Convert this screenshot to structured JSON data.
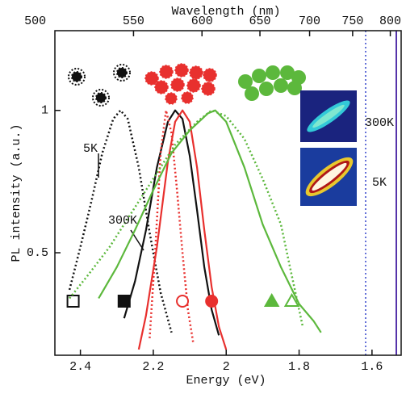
{
  "chart_data": {
    "type": "line",
    "xlabel": "Energy (eV)",
    "ylabel": "PL intensity (a.u.)",
    "x2label": "Wavelength (nm)",
    "xlim": [
      2.47,
      1.52
    ],
    "xticks": [
      2.4,
      2.2,
      2,
      1.8,
      1.6
    ],
    "ylim": [
      0.14,
      1.28
    ],
    "yticks": [
      0.5,
      1
    ],
    "x2ticks": [
      500,
      550,
      600,
      650,
      700,
      750,
      800
    ],
    "series": [
      {
        "color": "#111111",
        "dash": true,
        "x": [
          2.43,
          2.4,
          2.37,
          2.34,
          2.31,
          2.29,
          2.27,
          2.24,
          2.21,
          2.18,
          2.15
        ],
        "values": [
          0.37,
          0.52,
          0.68,
          0.85,
          0.97,
          1.0,
          0.97,
          0.8,
          0.57,
          0.36,
          0.22
        ],
        "marker": {
          "shape": "square-open",
          "x": 2.42,
          "y": 0.33
        }
      },
      {
        "color": "#111111",
        "dash": false,
        "x": [
          2.28,
          2.25,
          2.22,
          2.19,
          2.16,
          2.14,
          2.12,
          2.1,
          2.08,
          2.06,
          2.04,
          2.02
        ],
        "values": [
          0.27,
          0.4,
          0.58,
          0.8,
          0.96,
          1.0,
          0.97,
          0.84,
          0.65,
          0.45,
          0.3,
          0.21
        ],
        "marker": {
          "shape": "square",
          "x": 2.28,
          "y": 0.33
        }
      },
      {
        "color": "#e8302e",
        "dash": true,
        "x": [
          2.21,
          2.195,
          2.18,
          2.165,
          2.15,
          2.135,
          2.12,
          2.105,
          2.09
        ],
        "values": [
          0.2,
          0.5,
          0.85,
          1.0,
          0.92,
          0.72,
          0.5,
          0.3,
          0.18
        ],
        "marker": {
          "shape": "circle-open",
          "x": 2.12,
          "y": 0.33
        }
      },
      {
        "color": "#e8302e",
        "dash": false,
        "x": [
          2.24,
          2.22,
          2.19,
          2.16,
          2.14,
          2.12,
          2.1,
          2.08,
          2.06,
          2.04,
          2.02,
          2.0
        ],
        "values": [
          0.16,
          0.28,
          0.52,
          0.82,
          0.96,
          1.0,
          0.96,
          0.8,
          0.58,
          0.38,
          0.24,
          0.16
        ],
        "marker": {
          "shape": "circle",
          "x": 2.04,
          "y": 0.33
        }
      },
      {
        "color": "#5cb83c",
        "dash": false,
        "x": [
          2.35,
          2.3,
          2.25,
          2.2,
          2.15,
          2.1,
          2.05,
          2.03,
          2.0,
          1.95,
          1.9,
          1.85,
          1.8,
          1.76,
          1.74
        ],
        "values": [
          0.34,
          0.45,
          0.58,
          0.72,
          0.85,
          0.93,
          0.99,
          1.0,
          0.96,
          0.8,
          0.6,
          0.45,
          0.32,
          0.26,
          0.22
        ],
        "marker": {
          "shape": "triangle",
          "x": 1.875,
          "y": 0.33
        }
      },
      {
        "color": "#5cb83c",
        "dash": true,
        "x": [
          2.43,
          2.38,
          2.32,
          2.26,
          2.2,
          2.14,
          2.08,
          2.04,
          2.0,
          1.95,
          1.9,
          1.85,
          1.82,
          1.79
        ],
        "values": [
          0.34,
          0.42,
          0.52,
          0.64,
          0.76,
          0.88,
          0.96,
          1.0,
          0.98,
          0.9,
          0.76,
          0.6,
          0.42,
          0.24
        ],
        "marker": {
          "shape": "triangle-open",
          "x": 1.82,
          "y": 0.33
        }
      }
    ],
    "annotations": [
      "5K",
      "300K",
      "300K",
      "5K"
    ]
  }
}
